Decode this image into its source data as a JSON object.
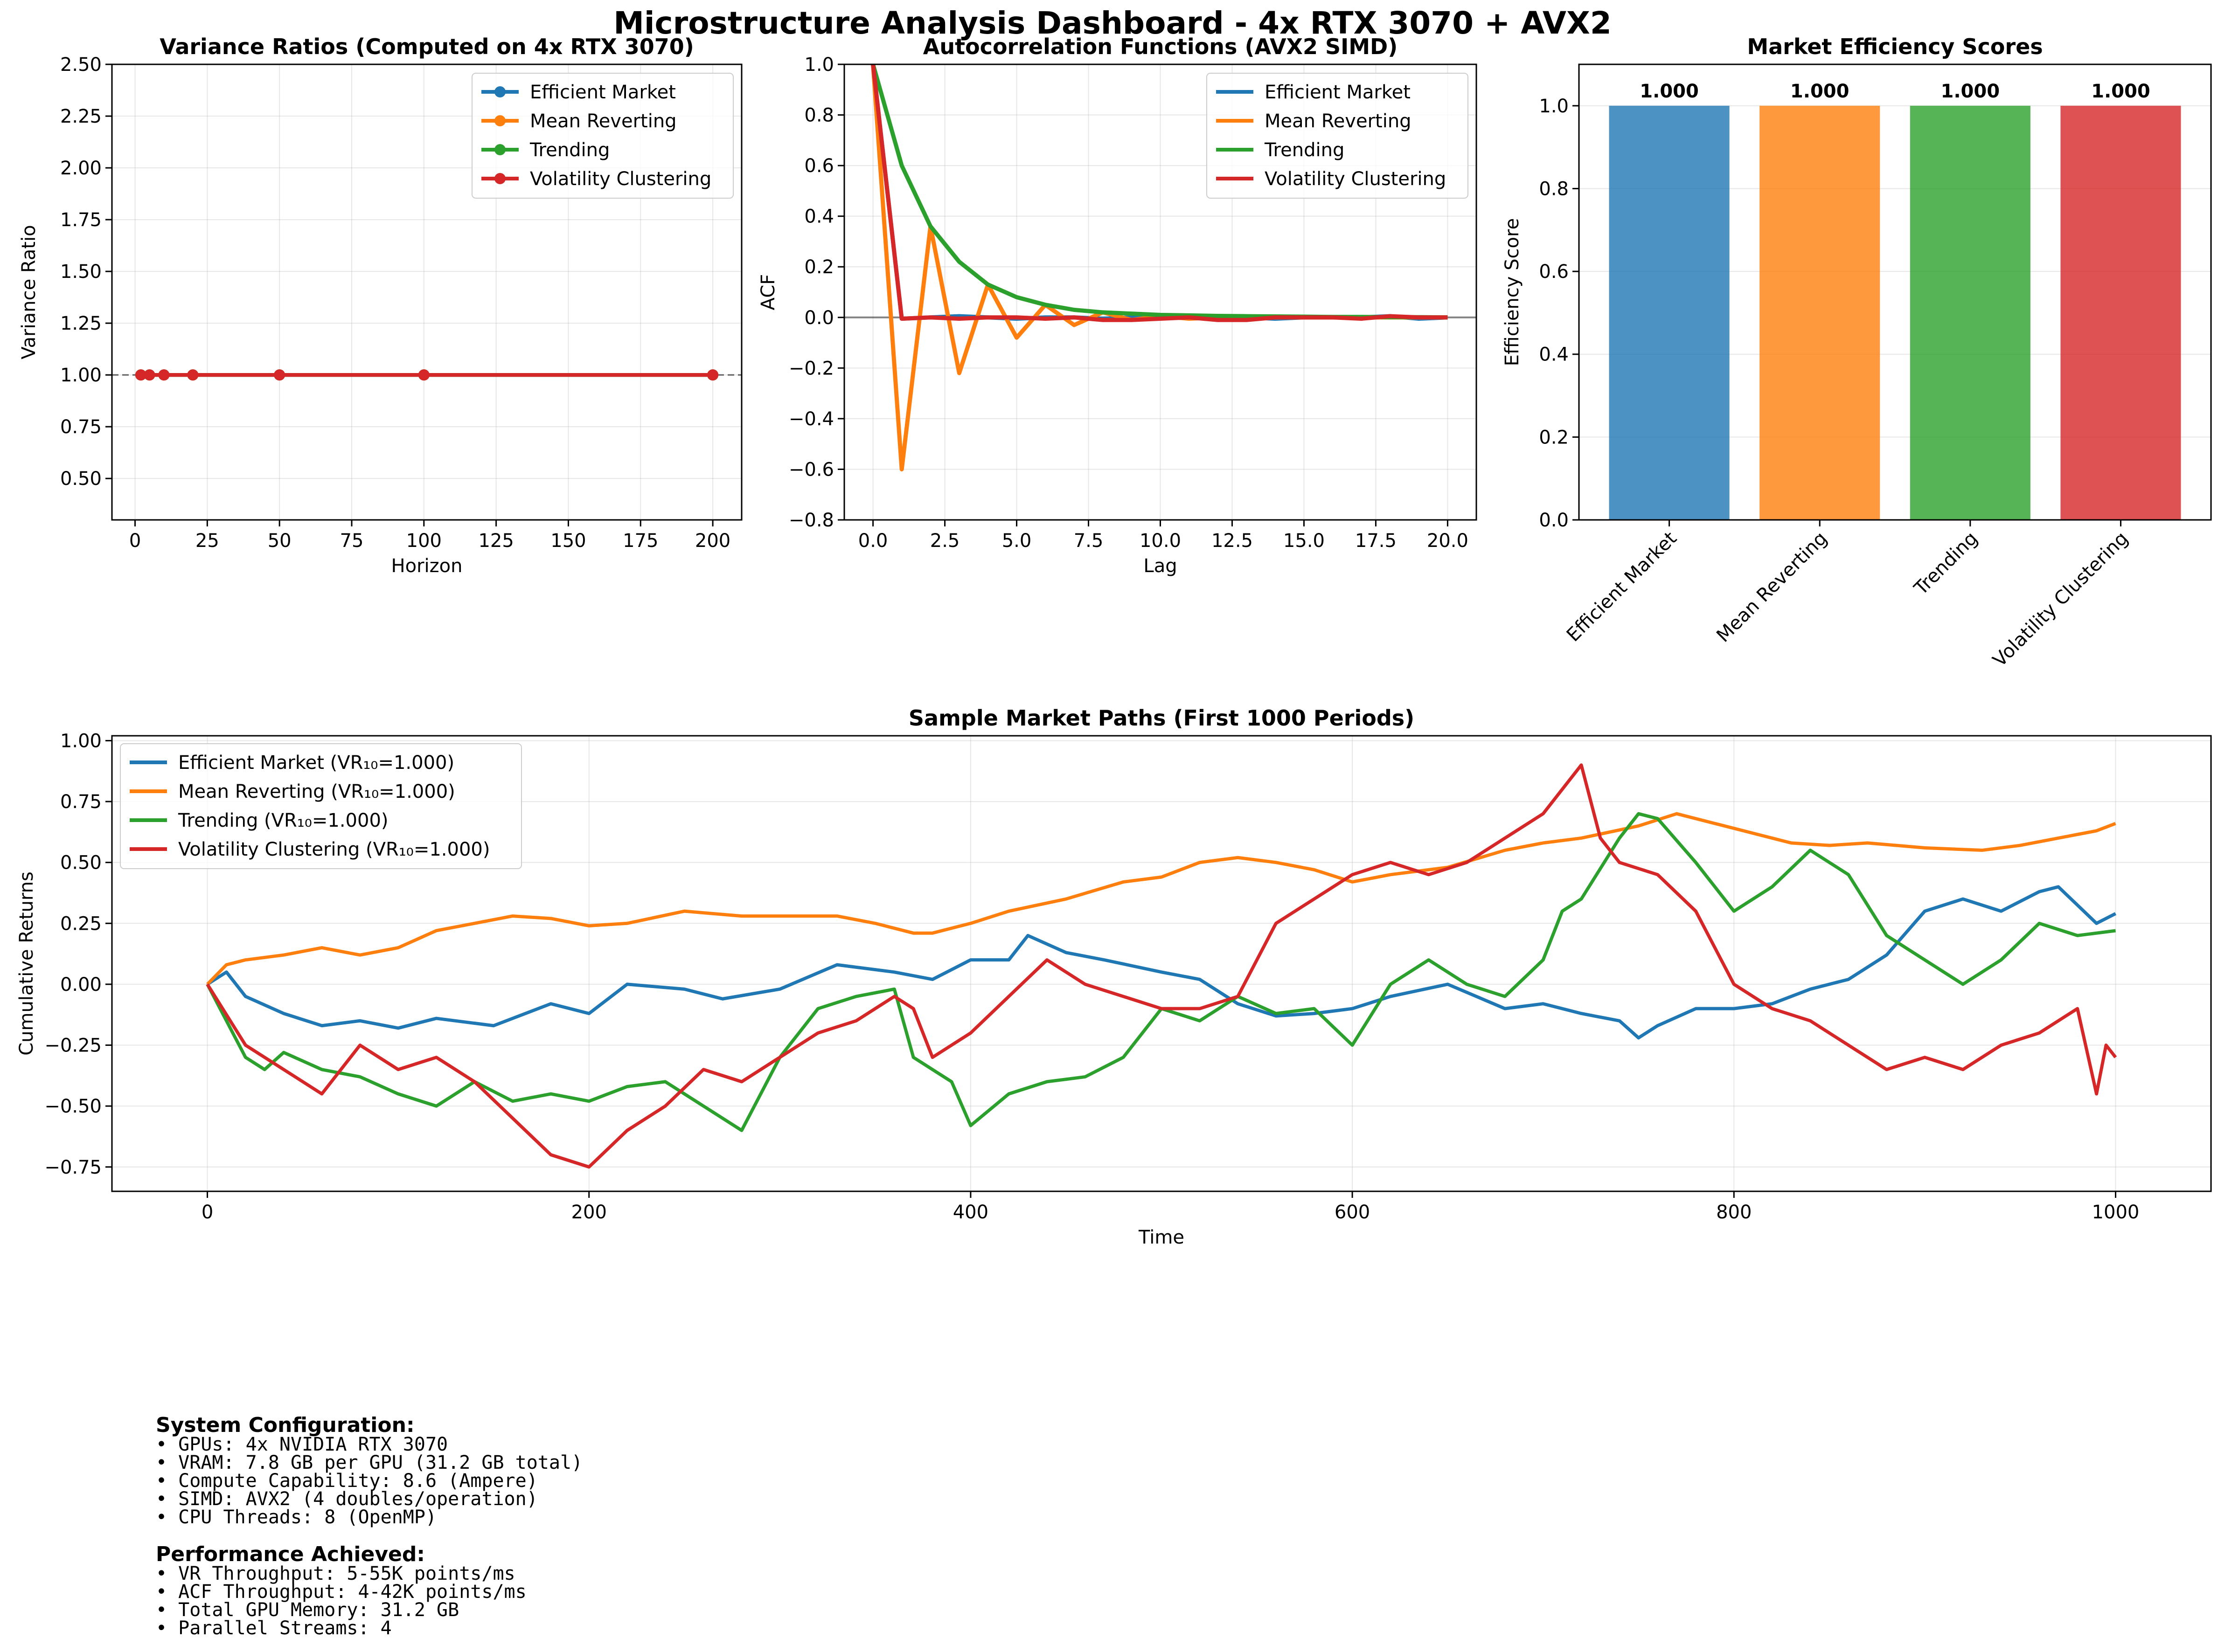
{
  "suptitle": "Microstructure Analysis Dashboard - 4x RTX 3070 + AVX2",
  "colors": {
    "efficient": "#1f77b4",
    "mean_reverting": "#ff7f0e",
    "trending": "#2ca02c",
    "volatility": "#d62728"
  },
  "chart_data": [
    {
      "type": "line",
      "title": "Variance Ratios (Computed on 4x RTX 3070)",
      "xlabel": "Horizon",
      "ylabel": "Variance Ratio",
      "xlim": [
        -8,
        210
      ],
      "ylim": [
        0.3,
        2.5
      ],
      "xticks": [
        0,
        25,
        50,
        75,
        100,
        125,
        150,
        175,
        200
      ],
      "yticks": [
        0.5,
        0.75,
        1.0,
        1.25,
        1.5,
        1.75,
        2.0,
        2.25,
        2.5
      ],
      "ytick_labels": [
        "0.50",
        "0.75",
        "1.00",
        "1.25",
        "1.50",
        "1.75",
        "2.00",
        "2.25",
        "2.50"
      ],
      "grid": true,
      "legend": "top-right",
      "reference_line": 1.0,
      "x": [
        2,
        5,
        10,
        20,
        50,
        100,
        200
      ],
      "series": [
        {
          "name": "Efficient Market",
          "values": [
            1,
            1,
            1,
            1,
            1,
            1,
            1
          ]
        },
        {
          "name": "Mean Reverting",
          "values": [
            1,
            1,
            1,
            1,
            1,
            1,
            1
          ]
        },
        {
          "name": "Trending",
          "values": [
            1,
            1,
            1,
            1,
            1,
            1,
            1
          ]
        },
        {
          "name": "Volatility Clustering",
          "values": [
            1,
            1,
            1,
            1,
            1,
            1,
            1
          ]
        }
      ]
    },
    {
      "type": "line",
      "title": "Autocorrelation Functions (AVX2 SIMD)",
      "xlabel": "Lag",
      "ylabel": "ACF",
      "xlim": [
        -1,
        21
      ],
      "ylim": [
        -0.8,
        1.0
      ],
      "xticks": [
        0,
        2.5,
        5,
        7.5,
        10,
        12.5,
        15,
        17.5,
        20
      ],
      "xtick_labels": [
        "0.0",
        "2.5",
        "5.0",
        "7.5",
        "10.0",
        "12.5",
        "15.0",
        "17.5",
        "20.0"
      ],
      "yticks": [
        -0.8,
        -0.6,
        -0.4,
        -0.2,
        0.0,
        0.2,
        0.4,
        0.6,
        0.8,
        1.0
      ],
      "ytick_labels": [
        "−0.8",
        "−0.6",
        "−0.4",
        "−0.2",
        "0.0",
        "0.2",
        "0.4",
        "0.6",
        "0.8",
        "1.0"
      ],
      "grid": true,
      "legend": "top-right",
      "reference_line": 0.0,
      "x": [
        0,
        1,
        2,
        3,
        4,
        5,
        6,
        7,
        8,
        9,
        10,
        11,
        12,
        13,
        14,
        15,
        16,
        17,
        18,
        19,
        20
      ],
      "series": [
        {
          "name": "Efficient Market",
          "values": [
            1.0,
            -0.005,
            0.0,
            0.005,
            0.0,
            -0.005,
            0.0,
            0.0,
            -0.005,
            0.0,
            0.0,
            0.005,
            0.0,
            0.0,
            -0.005,
            0.0,
            0.0,
            0.0,
            0.005,
            -0.005,
            0.0
          ]
        },
        {
          "name": "Mean Reverting",
          "values": [
            1.0,
            -0.6,
            0.36,
            -0.22,
            0.13,
            -0.08,
            0.05,
            -0.03,
            0.02,
            -0.01,
            0.005,
            -0.005,
            0.0,
            0.0,
            0.0,
            0.0,
            0.0,
            0.0,
            0.0,
            0.0,
            0.0
          ]
        },
        {
          "name": "Trending",
          "values": [
            1.0,
            0.6,
            0.36,
            0.22,
            0.13,
            0.08,
            0.05,
            0.03,
            0.02,
            0.015,
            0.01,
            0.008,
            0.006,
            0.005,
            0.004,
            0.003,
            0.002,
            0.002,
            0.001,
            0.001,
            0.0
          ]
        },
        {
          "name": "Volatility Clustering",
          "values": [
            1.0,
            -0.005,
            0.0,
            -0.005,
            0.0,
            0.0,
            -0.005,
            0.0,
            -0.01,
            -0.01,
            -0.005,
            0.0,
            -0.01,
            -0.01,
            0.0,
            0.0,
            0.0,
            -0.005,
            0.005,
            0.0,
            0.0
          ]
        }
      ]
    },
    {
      "type": "bar",
      "title": "Market Efficiency Scores",
      "xlabel": "",
      "ylabel": "Efficiency Score",
      "ylim": [
        0,
        1.1
      ],
      "yticks": [
        0,
        0.2,
        0.4,
        0.6,
        0.8,
        1.0
      ],
      "ytick_labels": [
        "0.0",
        "0.2",
        "0.4",
        "0.6",
        "0.8",
        "1.0"
      ],
      "grid": true,
      "categories": [
        "Efficient Market",
        "Mean Reverting",
        "Trending",
        "Volatility Clustering"
      ],
      "values": [
        1.0,
        1.0,
        1.0,
        1.0
      ],
      "value_labels": [
        "1.000",
        "1.000",
        "1.000",
        "1.000"
      ]
    },
    {
      "type": "line",
      "title": "Sample Market Paths (First 1000 Periods)",
      "xlabel": "Time",
      "ylabel": "Cumulative Returns",
      "xlim": [
        -50,
        1050
      ],
      "ylim": [
        -0.85,
        1.02
      ],
      "xticks": [
        0,
        200,
        400,
        600,
        800,
        1000
      ],
      "yticks": [
        -0.75,
        -0.5,
        -0.25,
        0.0,
        0.25,
        0.5,
        0.75,
        1.0
      ],
      "ytick_labels": [
        "−0.75",
        "−0.50",
        "−0.25",
        "0.00",
        "0.25",
        "0.50",
        "0.75",
        "1.00"
      ],
      "grid": true,
      "legend": "top-left",
      "series": [
        {
          "name": "Efficient Market (VR₁₀=1.000)",
          "x": [
            0,
            10,
            20,
            40,
            60,
            80,
            100,
            120,
            150,
            180,
            200,
            220,
            250,
            270,
            300,
            330,
            360,
            380,
            400,
            420,
            430,
            450,
            470,
            500,
            520,
            540,
            560,
            580,
            600,
            620,
            650,
            680,
            700,
            720,
            740,
            750,
            760,
            780,
            800,
            820,
            840,
            860,
            880,
            900,
            920,
            940,
            960,
            970,
            990,
            1000
          ],
          "values": [
            0.0,
            0.05,
            -0.05,
            -0.12,
            -0.17,
            -0.15,
            -0.18,
            -0.14,
            -0.17,
            -0.08,
            -0.12,
            0.0,
            -0.02,
            -0.06,
            -0.02,
            0.08,
            0.05,
            0.02,
            0.1,
            0.1,
            0.2,
            0.13,
            0.1,
            0.05,
            0.02,
            -0.08,
            -0.13,
            -0.12,
            -0.1,
            -0.05,
            0.0,
            -0.1,
            -0.08,
            -0.12,
            -0.15,
            -0.22,
            -0.17,
            -0.1,
            -0.1,
            -0.08,
            -0.02,
            0.02,
            0.12,
            0.3,
            0.35,
            0.3,
            0.38,
            0.4,
            0.25,
            0.29
          ]
        },
        {
          "name": "Mean Reverting (VR₁₀=1.000)",
          "x": [
            0,
            10,
            20,
            40,
            60,
            80,
            100,
            120,
            140,
            160,
            180,
            200,
            220,
            250,
            280,
            300,
            330,
            350,
            370,
            380,
            400,
            420,
            450,
            480,
            500,
            520,
            540,
            560,
            580,
            600,
            620,
            650,
            680,
            700,
            720,
            750,
            770,
            790,
            810,
            830,
            850,
            870,
            900,
            930,
            950,
            970,
            990,
            1000
          ],
          "values": [
            0.0,
            0.08,
            0.1,
            0.12,
            0.15,
            0.12,
            0.15,
            0.22,
            0.25,
            0.28,
            0.27,
            0.24,
            0.25,
            0.3,
            0.28,
            0.28,
            0.28,
            0.25,
            0.21,
            0.21,
            0.25,
            0.3,
            0.35,
            0.42,
            0.44,
            0.5,
            0.52,
            0.5,
            0.47,
            0.42,
            0.45,
            0.48,
            0.55,
            0.58,
            0.6,
            0.65,
            0.7,
            0.66,
            0.62,
            0.58,
            0.57,
            0.58,
            0.56,
            0.55,
            0.57,
            0.6,
            0.63,
            0.66
          ]
        },
        {
          "name": "Trending (VR₁₀=1.000)",
          "x": [
            0,
            10,
            20,
            30,
            40,
            60,
            80,
            100,
            120,
            140,
            160,
            180,
            200,
            220,
            240,
            260,
            280,
            300,
            320,
            340,
            360,
            370,
            380,
            390,
            400,
            420,
            440,
            460,
            480,
            500,
            520,
            540,
            560,
            580,
            600,
            620,
            640,
            660,
            680,
            700,
            710,
            720,
            740,
            750,
            760,
            780,
            800,
            820,
            840,
            860,
            880,
            900,
            920,
            940,
            960,
            980,
            1000
          ],
          "values": [
            0.0,
            -0.15,
            -0.3,
            -0.35,
            -0.28,
            -0.35,
            -0.38,
            -0.45,
            -0.5,
            -0.4,
            -0.48,
            -0.45,
            -0.48,
            -0.42,
            -0.4,
            -0.5,
            -0.6,
            -0.3,
            -0.1,
            -0.05,
            -0.02,
            -0.3,
            -0.35,
            -0.4,
            -0.58,
            -0.45,
            -0.4,
            -0.38,
            -0.3,
            -0.1,
            -0.15,
            -0.05,
            -0.12,
            -0.1,
            -0.25,
            0.0,
            0.1,
            0.0,
            -0.05,
            0.1,
            0.3,
            0.35,
            0.6,
            0.7,
            0.68,
            0.5,
            0.3,
            0.4,
            0.55,
            0.45,
            0.2,
            0.1,
            0.0,
            0.1,
            0.25,
            0.2,
            0.22
          ]
        },
        {
          "name": "Volatility Clustering (VR₁₀=1.000)",
          "x": [
            0,
            20,
            40,
            60,
            80,
            100,
            120,
            140,
            160,
            180,
            200,
            220,
            240,
            260,
            280,
            300,
            320,
            340,
            360,
            370,
            380,
            400,
            420,
            440,
            460,
            480,
            500,
            520,
            540,
            560,
            580,
            600,
            620,
            640,
            660,
            680,
            700,
            710,
            720,
            730,
            740,
            760,
            780,
            800,
            820,
            840,
            860,
            880,
            900,
            920,
            940,
            960,
            980,
            990,
            995,
            1000
          ],
          "values": [
            0.0,
            -0.25,
            -0.35,
            -0.45,
            -0.25,
            -0.35,
            -0.3,
            -0.4,
            -0.55,
            -0.7,
            -0.75,
            -0.6,
            -0.5,
            -0.35,
            -0.4,
            -0.3,
            -0.2,
            -0.15,
            -0.05,
            -0.1,
            -0.3,
            -0.2,
            -0.05,
            0.1,
            0.0,
            -0.05,
            -0.1,
            -0.1,
            -0.05,
            0.25,
            0.35,
            0.45,
            0.5,
            0.45,
            0.5,
            0.6,
            0.7,
            0.8,
            0.9,
            0.6,
            0.5,
            0.45,
            0.3,
            0.0,
            -0.1,
            -0.15,
            -0.25,
            -0.35,
            -0.3,
            -0.35,
            -0.25,
            -0.2,
            -0.1,
            -0.45,
            -0.25,
            -0.3
          ]
        }
      ]
    }
  ],
  "sysinfo": {
    "config_heading": "System Configuration:",
    "config_lines": [
      "• GPUs: 4x NVIDIA RTX 3070",
      "• VRAM: 7.8 GB per GPU (31.2 GB total)",
      "• Compute Capability: 8.6 (Ampere)",
      "• SIMD: AVX2 (4 doubles/operation)",
      "• CPU Threads: 8 (OpenMP)"
    ],
    "perf_heading": "Performance Achieved:",
    "perf_lines": [
      "• VR Throughput: 5-55K points/ms",
      "• ACF Throughput: 4-42K points/ms",
      "• Total GPU Memory: 31.2 GB",
      "• Parallel Streams: 4"
    ]
  }
}
